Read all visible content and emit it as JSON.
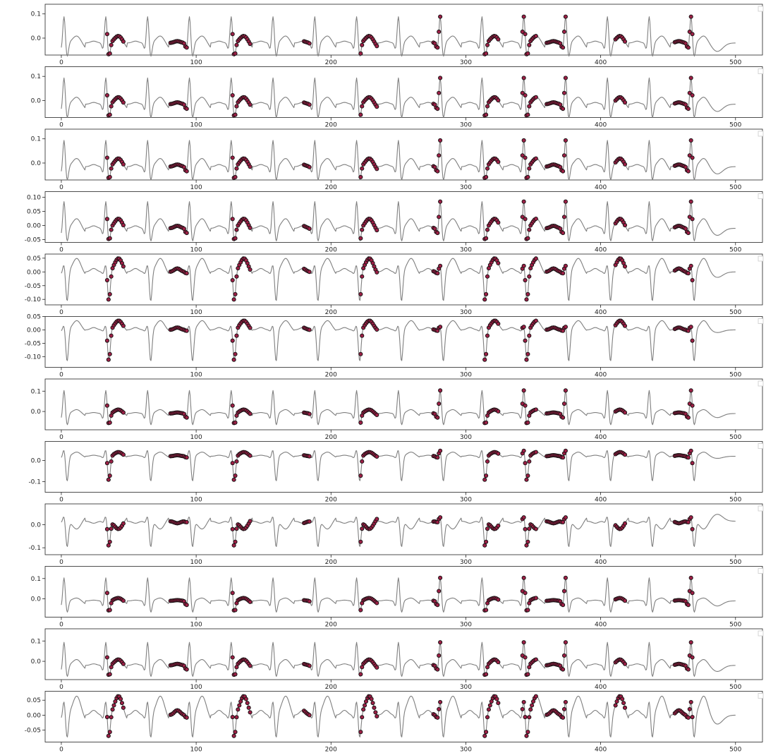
{
  "chart_data": {
    "type": "line",
    "title": "",
    "xlabel": "",
    "ylabel": "",
    "xlim": [
      -12,
      520
    ],
    "x_ticks": [
      0,
      100,
      200,
      300,
      400,
      500
    ],
    "line_color": "#7f7f7f",
    "marker_color": "#9c1f45",
    "marker_edge_color": "#111111",
    "beat_x": [
      2,
      33,
      64,
      95,
      126,
      157,
      188,
      219,
      250,
      281,
      312,
      343,
      374,
      405,
      436,
      467
    ],
    "highlight_segments": [
      [
        34,
        46
      ],
      [
        81,
        93
      ],
      [
        127,
        140
      ],
      [
        180,
        184
      ],
      [
        222,
        234
      ],
      [
        276,
        281
      ],
      [
        314,
        324
      ],
      [
        342,
        352
      ],
      [
        360,
        374
      ],
      [
        411,
        418
      ],
      [
        455,
        468
      ]
    ],
    "panels": [
      {
        "ylim": [
          -0.07,
          0.14
        ],
        "yticks": [
          0.1,
          0.0
        ],
        "ytick_labels": [
          "0.1",
          "0.0"
        ],
        "r": 0.115,
        "s": -0.06,
        "t": 0.03,
        "n": -0.035,
        "base": -0.02
      },
      {
        "ylim": [
          -0.07,
          0.14
        ],
        "yticks": [
          0.1,
          0.0
        ],
        "ytick_labels": [
          "0.1",
          "0.0"
        ],
        "r": 0.115,
        "s": -0.06,
        "t": 0.03,
        "n": -0.03,
        "base": -0.015
      },
      {
        "ylim": [
          -0.07,
          0.14
        ],
        "yticks": [
          0.1,
          0.0
        ],
        "ytick_labels": [
          "0.1",
          "0.0"
        ],
        "r": 0.115,
        "s": -0.06,
        "t": 0.035,
        "n": -0.03,
        "base": -0.015
      },
      {
        "ylim": [
          -0.06,
          0.12
        ],
        "yticks": [
          0.1,
          0.05,
          0.0,
          -0.05
        ],
        "ytick_labels": [
          "0.10",
          "0.05",
          "0.00",
          "-0.05"
        ],
        "r": 0.1,
        "s": -0.05,
        "t": 0.035,
        "n": -0.025,
        "base": -0.01
      },
      {
        "ylim": [
          -0.12,
          0.065
        ],
        "yticks": [
          0.05,
          0.0,
          -0.05,
          -0.1
        ],
        "ytick_labels": [
          "0.05",
          "0.00",
          "-0.05",
          "-0.10"
        ],
        "r": 0.03,
        "s": -0.11,
        "t": 0.05,
        "n": -0.02,
        "base": 0.0
      },
      {
        "ylim": [
          -0.14,
          0.05
        ],
        "yticks": [
          0.05,
          0.0,
          -0.05,
          -0.1
        ],
        "ytick_labels": [
          "0.05",
          "0.00",
          "-0.05",
          "-0.10"
        ],
        "r": 0.02,
        "s": -0.12,
        "t": 0.035,
        "n": -0.01,
        "base": 0.0
      },
      {
        "ylim": [
          -0.09,
          0.16
        ],
        "yticks": [
          0.1,
          0.0
        ],
        "ytick_labels": [
          "0.1",
          "0.0"
        ],
        "r": 0.12,
        "s": -0.06,
        "t": 0.02,
        "n": -0.02,
        "base": -0.01
      },
      {
        "ylim": [
          -0.15,
          0.09
        ],
        "yticks": [
          0.0,
          -0.1
        ],
        "ytick_labels": [
          "0.0",
          "-0.1"
        ],
        "r": 0.035,
        "s": -0.12,
        "t": 0.02,
        "n": -0.01,
        "base": 0.02
      },
      {
        "ylim": [
          -0.13,
          0.09
        ],
        "yticks": [
          0.0,
          -0.1
        ],
        "ytick_labels": [
          "0.0",
          "-0.1"
        ],
        "r": 0.025,
        "s": -0.11,
        "t": -0.035,
        "n": 0.03,
        "base": 0.015
      },
      {
        "ylim": [
          -0.09,
          0.16
        ],
        "yticks": [
          0.1,
          0.0
        ],
        "ytick_labels": [
          "0.1",
          "0.0"
        ],
        "r": 0.12,
        "s": -0.06,
        "t": 0.015,
        "n": -0.025,
        "base": -0.01
      },
      {
        "ylim": [
          -0.09,
          0.16
        ],
        "yticks": [
          0.1,
          0.0
        ],
        "ytick_labels": [
          "0.1",
          "0.0"
        ],
        "r": 0.12,
        "s": -0.06,
        "t": 0.03,
        "n": -0.03,
        "base": -0.02
      },
      {
        "ylim": [
          -0.09,
          0.08
        ],
        "yticks": [
          0.05,
          0.0,
          -0.05
        ],
        "ytick_labels": [
          "0.05",
          "0.00",
          "-0.05"
        ],
        "r": 0.05,
        "s": -0.08,
        "t": 0.065,
        "n": -0.03,
        "base": 0.0
      }
    ]
  }
}
